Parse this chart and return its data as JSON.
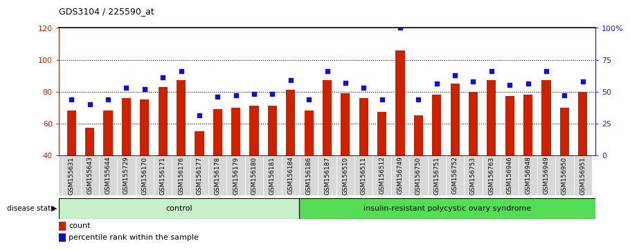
{
  "title": "GDS3104 / 225590_at",
  "samples": [
    "GSM155631",
    "GSM155643",
    "GSM155644",
    "GSM155729",
    "GSM156170",
    "GSM156171",
    "GSM156176",
    "GSM156177",
    "GSM156178",
    "GSM156179",
    "GSM156180",
    "GSM156181",
    "GSM156184",
    "GSM156186",
    "GSM156187",
    "GSM156510",
    "GSM156511",
    "GSM156512",
    "GSM156749",
    "GSM156750",
    "GSM156751",
    "GSM156752",
    "GSM156753",
    "GSM156763",
    "GSM156946",
    "GSM156948",
    "GSM156949",
    "GSM156950",
    "GSM156951"
  ],
  "count_values": [
    68,
    57,
    68,
    76,
    75,
    83,
    87,
    55,
    69,
    70,
    71,
    71,
    81,
    68,
    87,
    79,
    76,
    67,
    106,
    65,
    78,
    85,
    80,
    87,
    77,
    78,
    87,
    70,
    80
  ],
  "percentile_values_pct": [
    44,
    40,
    44,
    53,
    52,
    61,
    66,
    31,
    46,
    47,
    48,
    48,
    59,
    44,
    66,
    57,
    53,
    44,
    100,
    44,
    56,
    63,
    58,
    66,
    55,
    56,
    66,
    47,
    58
  ],
  "control_count": 13,
  "group_labels": [
    "control",
    "insulin-resistant polycystic ovary syndrome"
  ],
  "bar_color": "#cc2200",
  "percentile_color": "#1111cc",
  "ylim_left": [
    40,
    120
  ],
  "ylim_right": [
    0,
    100
  ],
  "yticks_left": [
    40,
    60,
    80,
    100,
    120
  ],
  "yticks_right": [
    0,
    25,
    50,
    75,
    100
  ],
  "ytick_labels_right": [
    "0",
    "25",
    "50",
    "75",
    "100%"
  ],
  "bar_width": 0.5,
  "xlabel_color": "#cc2200",
  "right_axis_color": "#2222bb"
}
